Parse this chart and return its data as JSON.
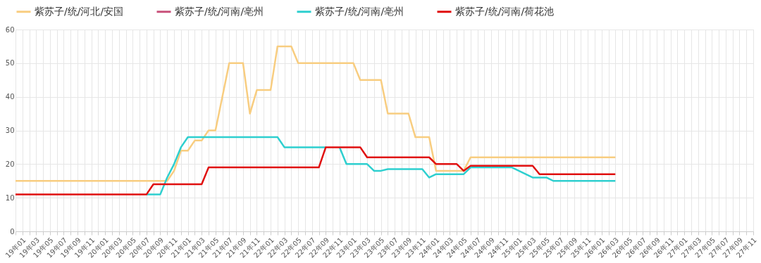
{
  "chart_data": {
    "type": "line",
    "categories": [
      "19年01",
      null,
      "19年03",
      null,
      "19年05",
      null,
      "19年07",
      null,
      "19年09",
      null,
      "19年11",
      null,
      "20年01",
      null,
      "20年03",
      null,
      "20年05",
      null,
      "20年07",
      null,
      "20年09",
      null,
      "20年11",
      null,
      "21年01",
      null,
      "21年03",
      null,
      "21年05",
      null,
      "21年07",
      null,
      "21年09",
      null,
      "21年11",
      null,
      "22年01",
      null,
      "22年03",
      null,
      "22年05",
      null,
      "22年07",
      null,
      "22年09",
      null,
      "22年11",
      null,
      "23年01",
      null,
      "23年03",
      null,
      "23年05",
      null,
      "23年07",
      null,
      "23年09",
      null,
      "23年11",
      null,
      "24年01",
      null,
      "24年03",
      null,
      "24年05",
      null,
      "24年07",
      null,
      "24年09",
      null,
      "24年11",
      null,
      "25年01",
      null,
      "25年03",
      null,
      "25年05",
      null,
      "25年07",
      null,
      "25年09",
      null,
      "25年11",
      null,
      "26年01",
      null,
      "26年03",
      null,
      "26年05",
      null,
      "26年07",
      null,
      "26年09",
      null,
      "26年11",
      null,
      "27年01",
      null,
      "27年03",
      null,
      "27年05",
      null,
      "27年07",
      null,
      "27年09",
      null,
      "27年11",
      null
    ],
    "series": [
      {
        "name": "紫苏子/统/河北/安国",
        "color": "#f8cd80",
        "values": [
          15,
          15,
          15,
          15,
          15,
          15,
          15,
          15,
          15,
          15,
          15,
          15,
          15,
          15,
          15,
          15,
          15,
          15,
          15,
          15,
          15,
          15,
          15,
          18,
          24,
          24,
          27,
          27,
          30,
          30,
          40,
          50,
          50,
          50,
          35,
          42,
          42,
          42,
          55,
          55,
          55,
          50,
          50,
          50,
          50,
          50,
          50,
          50,
          50,
          50,
          45,
          45,
          45,
          45,
          35,
          35,
          35,
          35,
          28,
          28,
          28,
          18,
          18,
          18,
          18,
          18,
          22,
          22,
          22,
          22,
          22,
          22,
          22,
          22,
          22,
          22,
          22,
          22,
          22,
          22,
          22,
          22,
          22,
          22,
          22,
          22,
          22,
          22,
          null,
          null,
          null,
          null,
          null,
          null,
          null,
          null,
          null,
          null,
          null,
          null,
          null,
          null,
          null,
          null,
          null,
          null,
          null,
          null
        ]
      },
      {
        "name": "紫苏子/统/河南/亳州",
        "color": "#c8507a",
        "values": [
          null,
          null,
          null,
          null,
          null,
          null,
          null,
          null,
          null,
          null,
          null,
          null,
          null,
          null,
          null,
          null,
          null,
          null,
          null,
          null,
          null,
          null,
          null,
          null,
          null,
          null,
          null,
          null,
          null,
          null,
          null,
          null,
          null,
          null,
          null,
          null,
          null,
          null,
          null,
          null,
          null,
          null,
          null,
          null,
          null,
          null,
          null,
          null,
          null,
          null,
          null,
          null,
          null,
          null,
          null,
          null,
          null,
          null,
          null,
          null,
          null,
          null,
          null,
          null,
          null,
          null,
          null,
          null,
          null,
          null,
          null,
          null,
          null,
          null,
          null,
          null,
          null,
          null,
          null,
          null,
          null,
          null,
          null,
          null,
          null,
          null,
          null,
          null,
          null,
          null,
          null,
          null,
          null,
          null,
          null,
          null,
          null,
          null,
          null,
          null,
          null,
          null,
          null,
          null,
          null,
          null,
          null,
          null
        ]
      },
      {
        "name": "紫苏子/统/河南/亳州",
        "color": "#2ecfcf",
        "values": [
          null,
          null,
          null,
          null,
          null,
          null,
          null,
          null,
          null,
          null,
          null,
          null,
          null,
          null,
          null,
          null,
          null,
          null,
          null,
          11,
          11,
          11,
          16,
          20,
          25,
          28,
          28,
          28,
          28,
          28,
          28,
          28,
          28,
          28,
          28,
          28,
          28,
          28,
          28,
          25,
          25,
          25,
          25,
          25,
          25,
          25,
          null,
          25,
          20,
          20,
          20,
          20,
          18,
          18,
          18.5,
          18.5,
          18.5,
          18.5,
          18.5,
          18.5,
          16,
          17,
          17,
          17,
          17,
          17,
          19,
          19,
          19,
          19,
          19,
          19,
          19,
          18,
          17,
          16,
          16,
          16,
          15,
          15,
          15,
          15,
          15,
          15,
          15,
          15,
          15,
          15,
          null,
          null,
          null,
          null,
          null,
          null,
          null,
          null,
          null,
          null,
          null,
          null,
          null,
          null,
          null,
          null,
          null,
          null,
          null,
          null
        ]
      },
      {
        "name": "紫苏子/统/河南/荷花池",
        "color": "#e00f0f",
        "values": [
          11,
          11,
          11,
          11,
          11,
          11,
          11,
          11,
          11,
          11,
          11,
          11,
          11,
          11,
          11,
          11,
          11,
          11,
          11,
          11,
          14,
          14,
          14,
          14,
          14,
          14,
          14,
          14,
          19,
          19,
          19,
          19,
          19,
          19,
          19,
          19,
          19,
          19,
          19,
          19,
          19,
          19,
          19,
          19,
          19,
          25,
          25,
          25,
          25,
          25,
          25,
          22,
          22,
          22,
          22,
          22,
          22,
          22,
          22,
          22,
          22,
          20,
          20,
          20,
          20,
          18,
          19.5,
          19.5,
          19.5,
          19.5,
          19.5,
          19.5,
          19.5,
          19.5,
          19.5,
          19.5,
          17,
          17,
          17,
          17,
          17,
          17,
          17,
          17,
          17,
          17,
          17,
          17,
          null,
          null,
          null,
          null,
          null,
          null,
          null,
          null,
          null,
          null,
          null,
          null,
          null,
          null,
          null,
          null,
          null,
          null,
          null,
          null
        ]
      }
    ],
    "ylim": [
      0,
      60
    ],
    "yticks": [
      0,
      10,
      20,
      30,
      40,
      50,
      60
    ],
    "grid": true,
    "legend": "top",
    "marker": "none",
    "line_style": "solid"
  }
}
